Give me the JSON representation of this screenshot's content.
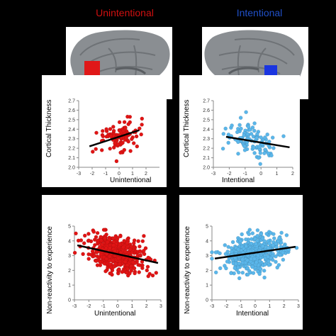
{
  "columns": [
    {
      "title": "Unintentional",
      "color": "#d01010",
      "region_color": "#e01818"
    },
    {
      "title": "Intentional",
      "color": "#2050c8",
      "region_color": "#1a35e0"
    }
  ],
  "chart_data": [
    {
      "type": "scatter",
      "xlabel": "Unintentional",
      "ylabel": "Cortical Thickness",
      "xlim": [
        -3,
        3
      ],
      "ylim": [
        2.0,
        2.7
      ],
      "xticks": [
        -3,
        -2,
        -1,
        0,
        1,
        2
      ],
      "yticks": [
        2.0,
        2.1,
        2.2,
        2.3,
        2.4,
        2.5,
        2.6,
        2.7
      ],
      "point_color": "#e01414",
      "trend": {
        "x": [
          -2.2,
          1.5
        ],
        "y": [
          2.22,
          2.39
        ]
      },
      "n_points": 110
    },
    {
      "type": "scatter",
      "xlabel": "Intentional",
      "ylabel": "Cortical Thickness",
      "xlim": [
        -3,
        2
      ],
      "ylim": [
        2.0,
        2.7
      ],
      "xticks": [
        -3,
        -2,
        -1,
        0,
        1,
        2
      ],
      "yticks": [
        2.0,
        2.1,
        2.2,
        2.3,
        2.4,
        2.5,
        2.6,
        2.7
      ],
      "point_color": "#5ab6ea",
      "trend": {
        "x": [
          -2.2,
          1.8
        ],
        "y": [
          2.32,
          2.21
        ]
      },
      "n_points": 110
    },
    {
      "type": "scatter",
      "xlabel": "Unintentional",
      "ylabel": "Non-reactivity to experience",
      "xlim": [
        -3,
        3
      ],
      "ylim": [
        0,
        5
      ],
      "xticks": [
        -3,
        -2,
        -1,
        0,
        1,
        2,
        3
      ],
      "yticks": [
        0,
        1,
        2,
        3,
        4,
        5
      ],
      "point_color": "#e01414",
      "trend": {
        "x": [
          -2.8,
          2.8
        ],
        "y": [
          3.7,
          2.5
        ]
      },
      "n_points": 520
    },
    {
      "type": "scatter",
      "xlabel": "Intentional",
      "ylabel": "Non-reactivity to experience",
      "xlim": [
        -3,
        3
      ],
      "ylim": [
        0,
        5
      ],
      "xticks": [
        -3,
        -2,
        -1,
        0,
        1,
        2,
        3
      ],
      "yticks": [
        0,
        1,
        2,
        3,
        4,
        5
      ],
      "point_color": "#5ab6ea",
      "trend": {
        "x": [
          -2.8,
          2.8
        ],
        "y": [
          2.8,
          3.6
        ]
      },
      "n_points": 520
    }
  ]
}
